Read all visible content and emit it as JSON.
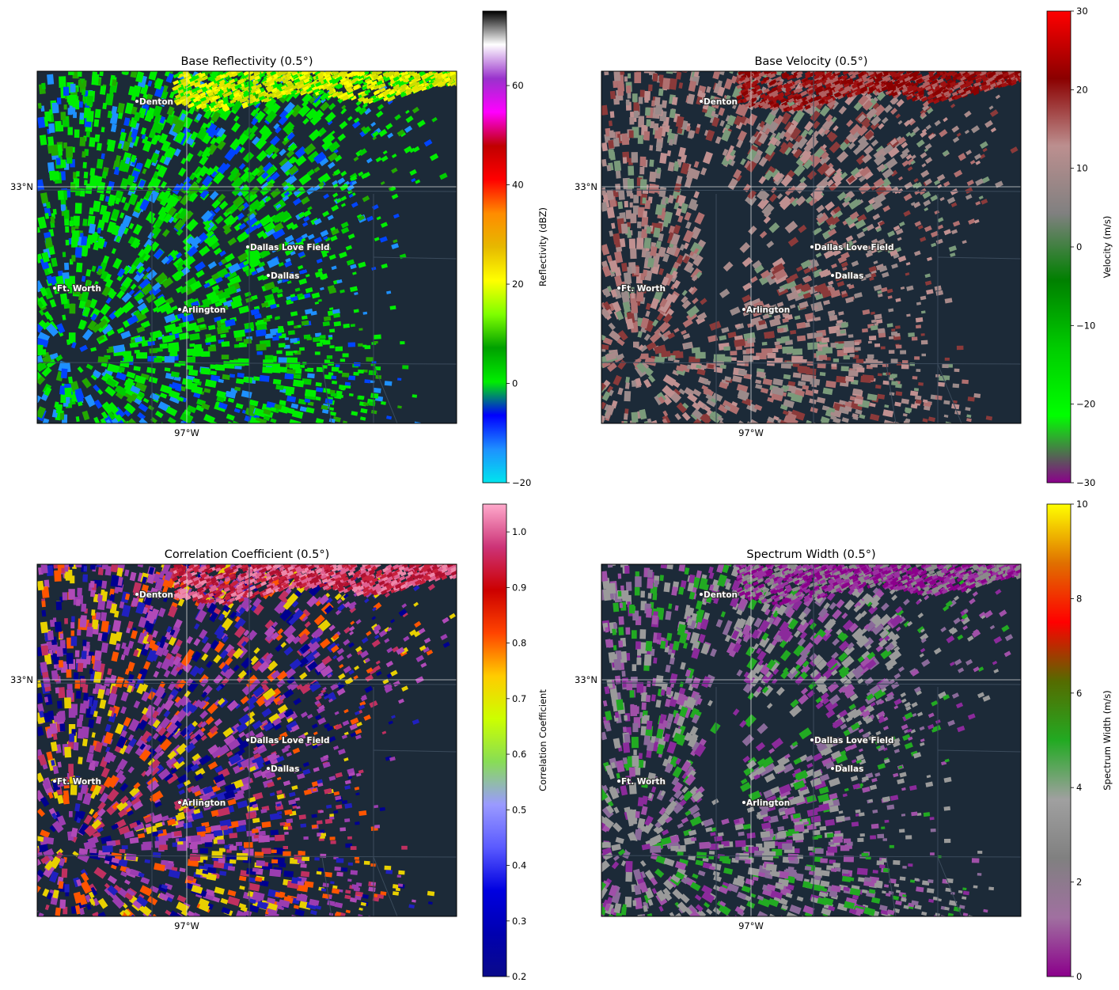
{
  "panels": [
    {
      "title": "Base Reflectivity (0.5°)",
      "product": "reflectivity",
      "colorbar_label": "Reflectivity (dBZ)",
      "colorbar_range": [
        -20,
        75
      ],
      "colorbar_ticks": [
        "−20",
        "0",
        "20",
        "40",
        "60"
      ],
      "colorbar_tick_values": [
        -20,
        0,
        20,
        40,
        60
      ],
      "colorbar_colors": [
        "#00e5ee",
        "#1e90ff",
        "#0000ff",
        "#00ee00",
        "#00a000",
        "#7fff00",
        "#ffff00",
        "#e6b800",
        "#ff8c00",
        "#ff0000",
        "#c00000",
        "#ff00ff",
        "#9932cc",
        "#ffffff",
        "#000000"
      ],
      "map_colors": [
        "#00ee00",
        "#00cc00",
        "#22aa00",
        "#0044ff",
        "#00ee00",
        "#1e90ff",
        "#00ee00"
      ],
      "north_band_colors": [
        "#ffff00",
        "#e6e600",
        "#00ee00",
        "#ccdd00"
      ]
    },
    {
      "title": "Base Velocity (0.5°)",
      "product": "velocity",
      "colorbar_label": "Velocity (m/s)",
      "colorbar_range": [
        -30,
        30
      ],
      "colorbar_ticks": [
        "−30",
        "−20",
        "−10",
        "0",
        "10",
        "20",
        "30"
      ],
      "colorbar_tick_values": [
        -30,
        -20,
        -10,
        0,
        10,
        20,
        30
      ],
      "colorbar_colors": [
        "#8b008b",
        "#00ff00",
        "#00cc00",
        "#008000",
        "#808080",
        "#bc8f8f",
        "#8b0000",
        "#ff0000"
      ],
      "map_colors": [
        "#a98a8a",
        "#b07070",
        "#9a8a8a",
        "#8b3a3a",
        "#c09090",
        "#7a9a7a"
      ],
      "north_band_colors": [
        "#8b0000",
        "#a01010",
        "#b06060"
      ]
    },
    {
      "title": "Correlation Coefficient (0.5°)",
      "product": "correlation_coefficient",
      "colorbar_label": "Correlation Coefficient",
      "colorbar_range": [
        0.2,
        1.05
      ],
      "colorbar_ticks": [
        "0.2",
        "0.3",
        "0.4",
        "0.5",
        "0.6",
        "0.7",
        "0.8",
        "0.9",
        "1.0"
      ],
      "colorbar_tick_values": [
        0.2,
        0.3,
        0.4,
        0.5,
        0.6,
        0.7,
        0.8,
        0.9,
        1.0
      ],
      "colorbar_colors": [
        "#0a0a8a",
        "#0000b0",
        "#0000e0",
        "#5a5aff",
        "#9a9aff",
        "#88dd55",
        "#ccff00",
        "#ffcc00",
        "#ff4400",
        "#cc0000",
        "#cc3377",
        "#ffaacc"
      ],
      "map_colors": [
        "#9b3db0",
        "#b04ab8",
        "#000090",
        "#e8d000",
        "#ff5500",
        "#c03060",
        "#9b3db0",
        "#2020c0"
      ],
      "north_band_colors": [
        "#c8203c",
        "#e06090",
        "#b01030",
        "#ee88aa"
      ]
    },
    {
      "title": "Spectrum Width (0.5°)",
      "product": "spectrum_width",
      "colorbar_label": "Spectrum Width (m/s)",
      "colorbar_range": [
        0,
        10
      ],
      "colorbar_ticks": [
        "0",
        "2",
        "4",
        "6",
        "8",
        "10"
      ],
      "colorbar_tick_values": [
        0,
        2,
        4,
        6,
        8,
        10
      ],
      "colorbar_colors": [
        "#8b008b",
        "#a070a0",
        "#808080",
        "#a0a0a0",
        "#22aa22",
        "#556b00",
        "#ff0000",
        "#e07000",
        "#ffff00"
      ],
      "map_colors": [
        "#9a9a9a",
        "#8a6a9a",
        "#a050a8",
        "#8b2a9b",
        "#9a9a9a",
        "#22aa22"
      ],
      "north_band_colors": [
        "#8b008b",
        "#9a30a0",
        "#8a8a8a"
      ]
    }
  ],
  "axis_labels": {
    "latitude": "33°N",
    "longitude": "97°W"
  },
  "cities": [
    "Denton",
    "Dallas Love Field",
    "Dallas",
    "Ft. Worth",
    "Arlington"
  ],
  "colors": {
    "map_background": "#1c2a38",
    "county_lines": "#3b4b5c",
    "gridlines": "#d8d8d8",
    "site_marker": "#1c2a38"
  }
}
